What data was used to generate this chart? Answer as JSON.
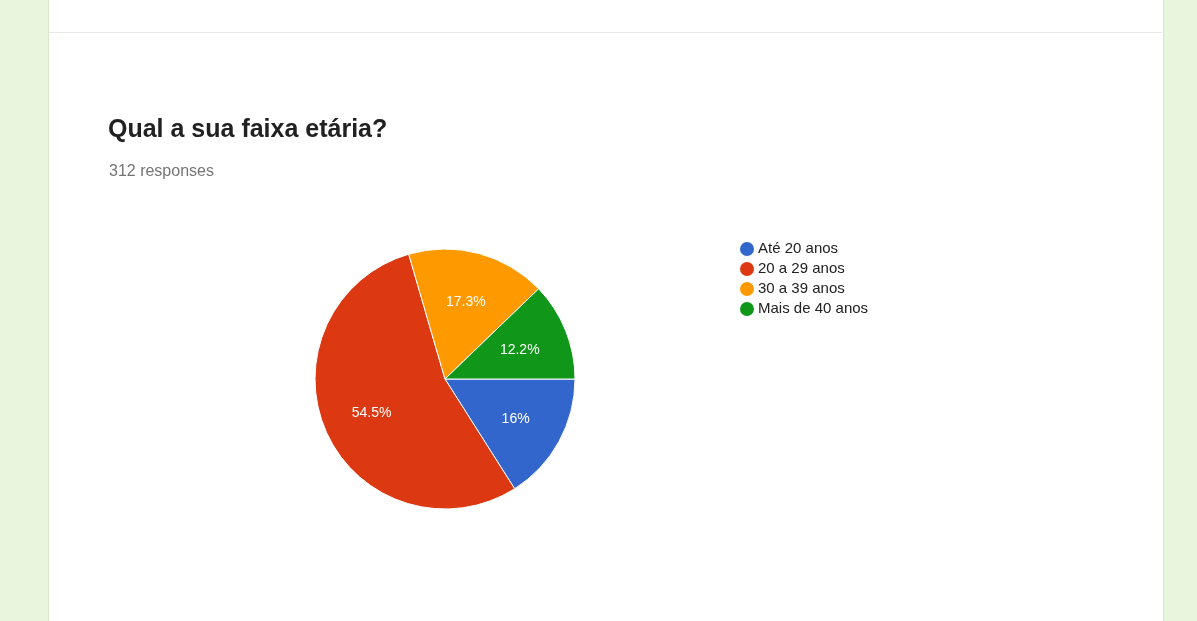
{
  "chart_data": {
    "type": "pie",
    "title": "Qual a sua faixa etária?",
    "subtitle": "312 responses",
    "categories": [
      "Até 20 anos",
      "20 a 29 anos",
      "30 a 39 anos",
      "Mais de 40 anos"
    ],
    "values": [
      16,
      54.5,
      17.3,
      12.2
    ],
    "value_labels": [
      "16%",
      "54.5%",
      "17.3%",
      "12.2%"
    ],
    "colors": [
      "#3366cc",
      "#dc3912",
      "#ff9900",
      "#109618"
    ],
    "legend": "right"
  }
}
